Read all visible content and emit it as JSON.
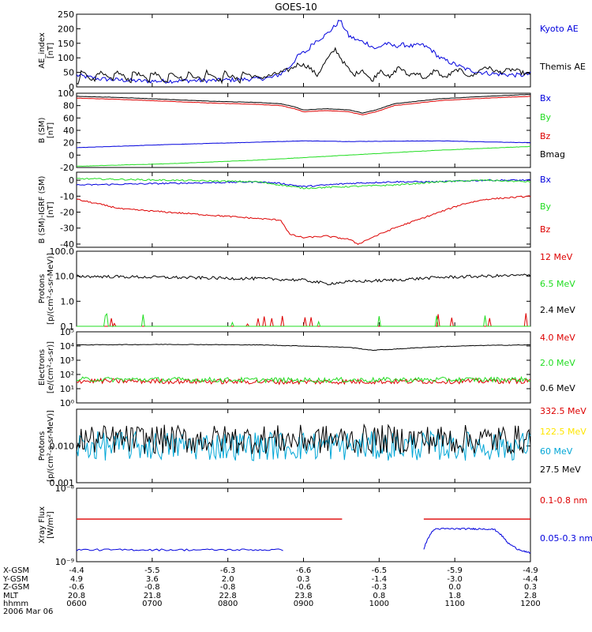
{
  "title": "GOES-10",
  "colors": {
    "black": "#000000",
    "red": "#dd0000",
    "green": "#22dd22",
    "blue": "#0000dd",
    "yellow": "#ffe600",
    "cyan": "#00a6d6"
  },
  "chart_data": [
    {
      "type": "line",
      "ylabel": [
        "AE_index",
        "[nT]"
      ],
      "ylim": [
        0,
        250
      ],
      "yticks": [
        "0",
        "50",
        "100",
        "150",
        "200",
        "250"
      ],
      "series": [
        {
          "name": "Kyoto AE",
          "color": "blue",
          "x": [
            0,
            0.02,
            0.05,
            0.08,
            0.12,
            0.15,
            0.2,
            0.25,
            0.3,
            0.35,
            0.4,
            0.43,
            0.45,
            0.47,
            0.49,
            0.51,
            0.52,
            0.53,
            0.55,
            0.57,
            0.58,
            0.6,
            0.62,
            0.64,
            0.66,
            0.68,
            0.7,
            0.72,
            0.74,
            0.76,
            0.78,
            0.8,
            0.83,
            0.86,
            0.89,
            0.92,
            0.95,
            0.98,
            1.0
          ],
          "y": [
            40,
            35,
            28,
            25,
            22,
            20,
            20,
            22,
            22,
            25,
            28,
            32,
            45,
            70,
            110,
            125,
            150,
            160,
            180,
            210,
            230,
            175,
            160,
            150,
            130,
            150,
            140,
            145,
            140,
            145,
            130,
            100,
            80,
            60,
            50,
            45,
            42,
            40,
            45
          ]
        },
        {
          "name": "Themis AE",
          "color": "black",
          "x": [
            0,
            0.005,
            0.01,
            0.04,
            0.045,
            0.08,
            0.085,
            0.12,
            0.125,
            0.16,
            0.165,
            0.2,
            0.205,
            0.24,
            0.245,
            0.28,
            0.285,
            0.32,
            0.325,
            0.36,
            0.365,
            0.4,
            0.43,
            0.45,
            0.47,
            0.49,
            0.51,
            0.53,
            0.55,
            0.57,
            0.59,
            0.61,
            0.63,
            0.65,
            0.67,
            0.69,
            0.71,
            0.73,
            0.75,
            0.77,
            0.79,
            0.81,
            0.84,
            0.87,
            0.9,
            0.93,
            0.96,
            1.0
          ],
          "y": [
            10,
            10,
            55,
            20,
            55,
            20,
            55,
            20,
            55,
            20,
            55,
            15,
            55,
            20,
            50,
            20,
            55,
            20,
            50,
            20,
            50,
            30,
            40,
            50,
            60,
            80,
            70,
            40,
            90,
            130,
            80,
            40,
            60,
            20,
            60,
            30,
            70,
            40,
            50,
            25,
            60,
            30,
            60,
            35,
            70,
            50,
            60,
            40
          ]
        }
      ]
    },
    {
      "type": "line",
      "ylabel": [
        "B (SM)",
        "[nT]"
      ],
      "ylim": [
        -20,
        100
      ],
      "yticks": [
        "-20",
        "0",
        "20",
        "40",
        "60",
        "80",
        "100"
      ],
      "series": [
        {
          "name": "Bx",
          "color": "blue",
          "x": [
            0,
            0.2,
            0.4,
            0.5,
            0.6,
            0.8,
            1.0
          ],
          "y": [
            12,
            17,
            21,
            23,
            22,
            23,
            20
          ]
        },
        {
          "name": "By",
          "color": "green",
          "x": [
            0,
            0.2,
            0.4,
            0.6,
            0.8,
            1.0
          ],
          "y": [
            -18,
            -14,
            -8,
            0,
            8,
            14
          ]
        },
        {
          "name": "Bz",
          "color": "red",
          "x": [
            0,
            0.1,
            0.2,
            0.3,
            0.4,
            0.45,
            0.48,
            0.5,
            0.55,
            0.6,
            0.63,
            0.66,
            0.7,
            0.8,
            0.9,
            1.0
          ],
          "y": [
            92,
            90,
            87,
            84,
            82,
            80,
            75,
            70,
            72,
            70,
            65,
            70,
            80,
            88,
            92,
            95
          ]
        },
        {
          "name": "Bmag",
          "color": "black",
          "x": [
            0,
            0.1,
            0.2,
            0.3,
            0.4,
            0.45,
            0.48,
            0.5,
            0.55,
            0.6,
            0.63,
            0.66,
            0.7,
            0.8,
            0.9,
            1.0
          ],
          "y": [
            95,
            93,
            90,
            87,
            85,
            83,
            78,
            73,
            75,
            73,
            68,
            73,
            83,
            91,
            95,
            98
          ]
        }
      ]
    },
    {
      "type": "line",
      "ylabel": [
        "B (SM)-IGRF (SM)",
        "[nT]"
      ],
      "ylim": [
        -42,
        5
      ],
      "yticks": [
        "-40",
        "-30",
        "-20",
        "-10",
        "0"
      ],
      "series": [
        {
          "name": "Bx",
          "color": "blue",
          "x": [
            0,
            0.2,
            0.4,
            0.45,
            0.5,
            0.55,
            0.6,
            0.7,
            0.8,
            0.9,
            1.0
          ],
          "y": [
            -3,
            -2,
            -1,
            -2,
            -4,
            -3,
            -2,
            -1,
            -1,
            0,
            0
          ]
        },
        {
          "name": "By",
          "color": "green",
          "x": [
            0,
            0.2,
            0.4,
            0.45,
            0.5,
            0.6,
            0.7,
            0.8,
            0.9,
            1.0
          ],
          "y": [
            1,
            0,
            -1,
            -3,
            -5,
            -4,
            -3,
            -1,
            0,
            -1
          ]
        },
        {
          "name": "Bz",
          "color": "red",
          "x": [
            0,
            0.05,
            0.1,
            0.2,
            0.3,
            0.4,
            0.45,
            0.47,
            0.5,
            0.55,
            0.6,
            0.62,
            0.65,
            0.7,
            0.75,
            0.8,
            0.85,
            0.9,
            0.95,
            1.0
          ],
          "y": [
            -12,
            -15,
            -18,
            -20,
            -22,
            -24,
            -25,
            -34,
            -36,
            -35,
            -37,
            -40,
            -36,
            -30,
            -25,
            -20,
            -15,
            -12,
            -11,
            -10
          ]
        }
      ]
    },
    {
      "type": "line",
      "log": true,
      "ylabel": [
        "Protons",
        "[p/(cm²-s-sr-MeV)]"
      ],
      "ylim": [
        0.1,
        100
      ],
      "yticks": [
        "0.1",
        "1.0",
        "10.0",
        "100.0"
      ],
      "series": [
        {
          "name": "12 MeV",
          "color": "red",
          "noise": "spikes",
          "baseline": 0.1
        },
        {
          "name": "6.5 MeV",
          "color": "green",
          "noise": "spikes",
          "baseline": 0.1
        },
        {
          "name": "2.4 MeV",
          "color": "black",
          "x": [
            0,
            0.2,
            0.4,
            0.5,
            0.55,
            0.6,
            0.7,
            0.8,
            1.0
          ],
          "y": [
            10,
            9,
            8,
            7,
            5,
            6,
            7,
            9,
            11
          ]
        }
      ]
    },
    {
      "type": "line",
      "log": true,
      "ylabel": [
        "Electrons",
        "[e/(cm²-s-sr)]"
      ],
      "ylim": [
        1,
        100000
      ],
      "yticks": [
        "10⁰",
        "10¹",
        "10²",
        "10³",
        "10⁴",
        "10⁵"
      ],
      "series": [
        {
          "name": "4.0 MeV",
          "color": "red",
          "x": [
            0,
            0.5,
            1.0
          ],
          "y": [
            35,
            30,
            35
          ]
        },
        {
          "name": "2.0 MeV",
          "color": "green",
          "x": [
            0,
            0.5,
            1.0
          ],
          "y": [
            45,
            40,
            45
          ]
        },
        {
          "name": "0.6 MeV",
          "color": "black",
          "x": [
            0,
            0.2,
            0.4,
            0.6,
            0.65,
            0.7,
            0.8,
            0.9,
            1.0
          ],
          "y": [
            12000,
            13000,
            12000,
            8000,
            5000,
            6000,
            9000,
            11000,
            12000
          ]
        }
      ]
    },
    {
      "type": "line",
      "log": true,
      "ylabel": [
        "Protons",
        "[p/(cm²-s-sr-MeV)]"
      ],
      "ylim": [
        0.001,
        0.1
      ],
      "yticks": [
        "0.001",
        "0.010"
      ],
      "series": [
        {
          "name": "332.5 MeV",
          "color": "red",
          "hidden": true
        },
        {
          "name": "122.5 MeV",
          "color": "yellow",
          "hidden": true
        },
        {
          "name": "60 MeV",
          "color": "cyan",
          "x": [
            0,
            0.5,
            1.0
          ],
          "y": [
            0.01,
            0.01,
            0.01
          ]
        },
        {
          "name": "27.5 MeV",
          "color": "black",
          "x": [
            0,
            0.5,
            1.0
          ],
          "y": [
            0.015,
            0.015,
            0.015
          ]
        }
      ]
    },
    {
      "type": "line",
      "log": true,
      "ylabel": [
        "Xray Flux",
        "[W/m²]"
      ],
      "ylim": [
        1e-09,
        1e-08
      ],
      "yticks": [
        "10⁻⁹",
        "10⁻⁸"
      ],
      "series": [
        {
          "name": "0.1-0.8 nm",
          "color": "red",
          "segments": [
            [
              0,
              0.585,
              3.8e-09
            ],
            [
              0.765,
              1.0,
              3.8e-09
            ]
          ]
        },
        {
          "name": "0.05-0.3 nm",
          "color": "blue",
          "segments_path": true
        }
      ]
    }
  ],
  "xaxis": {
    "rows": [
      "X-GSM",
      "Y-GSM",
      "Z-GSM",
      "MLT",
      "hhmm",
      "2006 Mar 06"
    ],
    "columns": [
      {
        "X-GSM": "-4.4",
        "Y-GSM": "4.9",
        "Z-GSM": "-0.6",
        "MLT": "20.8",
        "hhmm": "0600"
      },
      {
        "X-GSM": "-5.5",
        "Y-GSM": "3.6",
        "Z-GSM": "-0.8",
        "MLT": "21.8",
        "hhmm": "0700"
      },
      {
        "X-GSM": "-6.3",
        "Y-GSM": "2.0",
        "Z-GSM": "-0.8",
        "MLT": "22.8",
        "hhmm": "0800"
      },
      {
        "X-GSM": "-6.6",
        "Y-GSM": "0.3",
        "Z-GSM": "-0.6",
        "MLT": "23.8",
        "hhmm": "0900"
      },
      {
        "X-GSM": "-6.5",
        "Y-GSM": "-1.4",
        "Z-GSM": "-0.3",
        "MLT": "0.8",
        "hhmm": "1000"
      },
      {
        "X-GSM": "-5.9",
        "Y-GSM": "-3.0",
        "Z-GSM": "0.0",
        "MLT": "1.8",
        "hhmm": "1100"
      },
      {
        "X-GSM": "-4.9",
        "Y-GSM": "-4.4",
        "Z-GSM": "0.3",
        "MLT": "2.8",
        "hhmm": "1200"
      }
    ]
  }
}
